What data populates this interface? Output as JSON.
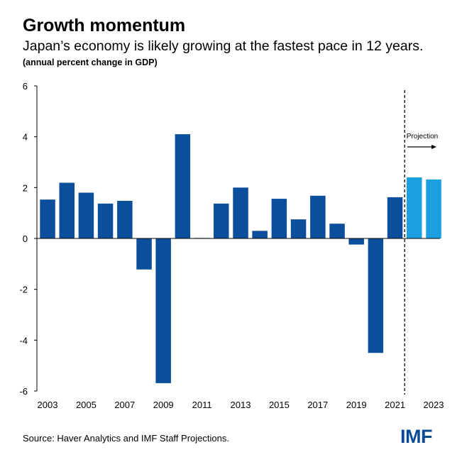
{
  "header": {
    "title": "Growth momentum",
    "subtitle": "Japan’s economy is likely growing at the fastest pace in 12 years.",
    "unit": "(annual percent change in GDP)"
  },
  "footer": {
    "source": "Source: Haver Analytics and IMF Staff Projections.",
    "logo": "IMF"
  },
  "colors": {
    "actual": "#0b4e9c",
    "projection": "#1aa0e0",
    "axis": "#000000"
  },
  "chart_data": {
    "type": "bar",
    "categories": [
      2003,
      2004,
      2005,
      2006,
      2007,
      2008,
      2009,
      2010,
      2011,
      2012,
      2013,
      2014,
      2015,
      2016,
      2017,
      2018,
      2019,
      2020,
      2021,
      2022,
      2023
    ],
    "values": [
      1.53,
      2.19,
      1.8,
      1.37,
      1.48,
      -1.22,
      -5.69,
      4.1,
      0.02,
      1.37,
      2.0,
      0.3,
      1.56,
      0.75,
      1.68,
      0.58,
      -0.24,
      -4.5,
      1.62,
      2.4,
      2.32
    ],
    "projection_start": 2022,
    "projection_label": "Projection",
    "xtick_labels": [
      "2003",
      "2005",
      "2007",
      "2009",
      "2011",
      "2013",
      "2015",
      "2017",
      "2019",
      "2021",
      "2023"
    ],
    "yticks": [
      6,
      4,
      2,
      0,
      -2,
      -4,
      -6
    ],
    "ytick_labels": [
      "6",
      "4",
      "2",
      "0",
      "-2",
      "-4",
      "-6"
    ],
    "ylim": [
      -6,
      6
    ],
    "xlabel": "",
    "ylabel": "",
    "grid": false
  }
}
